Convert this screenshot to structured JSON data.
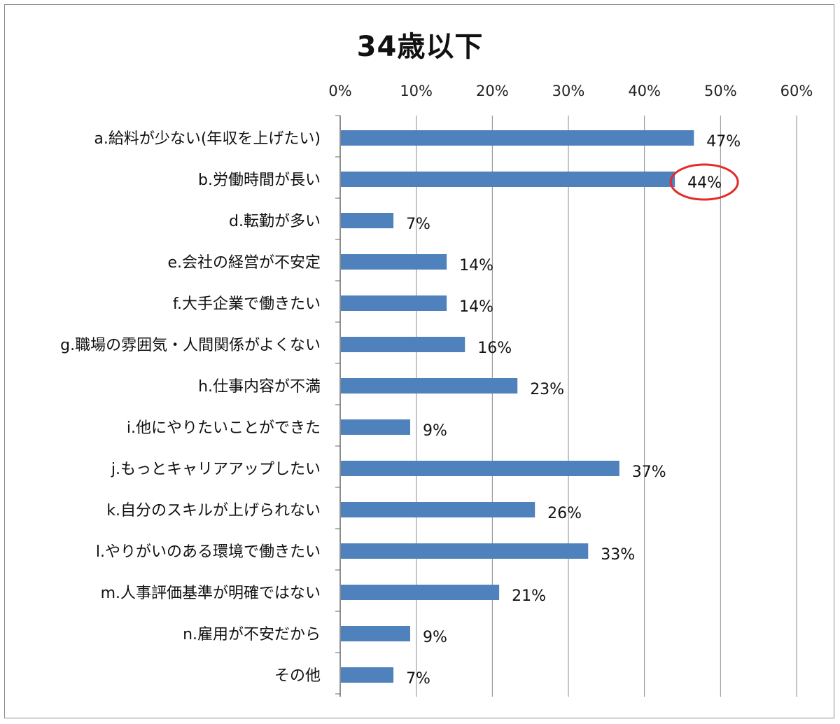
{
  "chart_data": {
    "type": "bar",
    "orientation": "horizontal",
    "title": "34歳以下",
    "xlim": [
      0,
      60
    ],
    "x_ticks": [
      "0%",
      "10%",
      "20%",
      "30%",
      "40%",
      "50%",
      "60%"
    ],
    "x_axis_position": "top",
    "grid": true,
    "categories": [
      "a.給料が少ない(年収を上げたい)",
      "b.労働時間が長い",
      "d.転勤が多い",
      "e.会社の経営が不安定",
      "f.大手企業で働きたい",
      "g.職場の雰囲気・人間関係がよくない",
      "h.仕事内容が不満",
      "i.他にやりたいことができた",
      "j.もっとキャリアアップしたい",
      "k.自分のスキルが上げられない",
      "l.やりがいのある環境で働きたい",
      "m.人事評価基準が明確ではない",
      "n.雇用が不安だから",
      "その他"
    ],
    "values": [
      46.5,
      44,
      7,
      14,
      14,
      16.4,
      23.3,
      9.2,
      36.7,
      25.6,
      32.6,
      20.9,
      9.2,
      7
    ],
    "value_labels": [
      "47%",
      "44%",
      "7%",
      "14%",
      "14%",
      "16%",
      "23%",
      "9%",
      "37%",
      "26%",
      "33%",
      "21%",
      "9%",
      "7%"
    ],
    "highlighted_label_index": 1,
    "bar_color": "#4f81bd",
    "highlight_color": "#e32b2b"
  }
}
